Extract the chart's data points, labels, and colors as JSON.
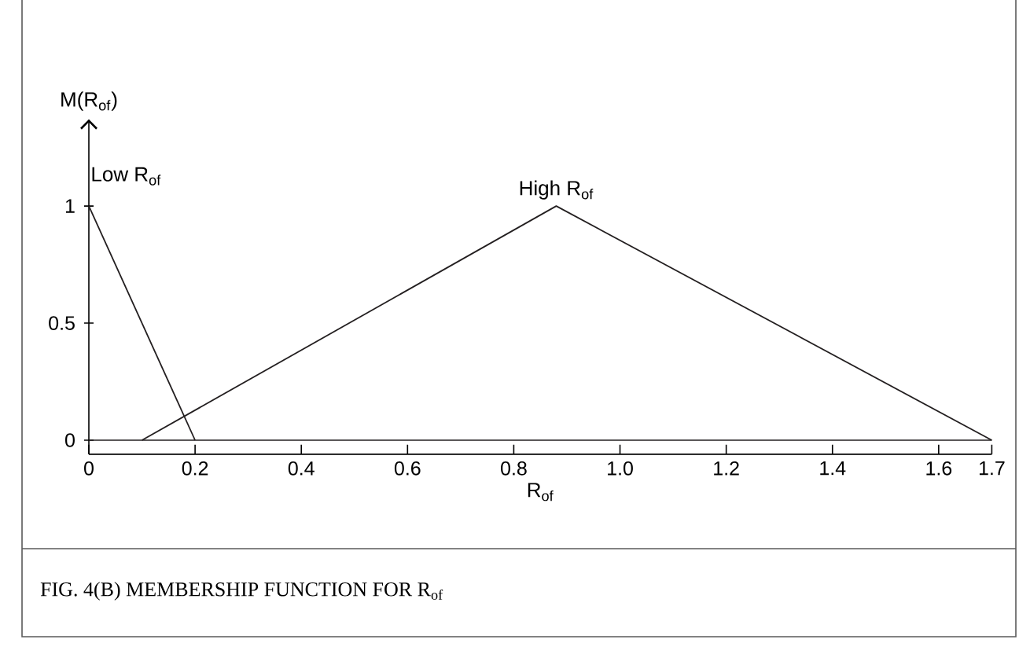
{
  "chart_data": {
    "type": "line",
    "title": "FIG. 4(B)     MEMBERSHIP FUNCTION FOR R$_{of}$",
    "xlabel": "R$_{of}$",
    "ylabel": "M(R$_{of}$)",
    "series": [
      {
        "name": "Low R$_{of}$",
        "color": "#231f20",
        "x": [
          0,
          0.2
        ],
        "values": [
          1,
          0
        ]
      },
      {
        "name": "High R$_{of}$",
        "color": "#231f20",
        "x": [
          0.1,
          0.88,
          1.7
        ],
        "values": [
          0,
          1,
          0
        ]
      }
    ],
    "xlim": [
      0,
      1.7
    ],
    "ylim": [
      -0.06,
      1.37
    ],
    "xticks": [
      0,
      0.2,
      0.4,
      0.6,
      0.8,
      {
        "value": 1.0,
        "label": "1.0"
      },
      1.2,
      1.4,
      1.6,
      1.7
    ],
    "yticks": [
      0,
      0.5,
      1
    ],
    "ref_lines": [
      {
        "axis": "y",
        "value": 0,
        "color": "#231f20"
      }
    ],
    "grid": false,
    "legend": false,
    "marker": "none",
    "line_style": "solid"
  }
}
